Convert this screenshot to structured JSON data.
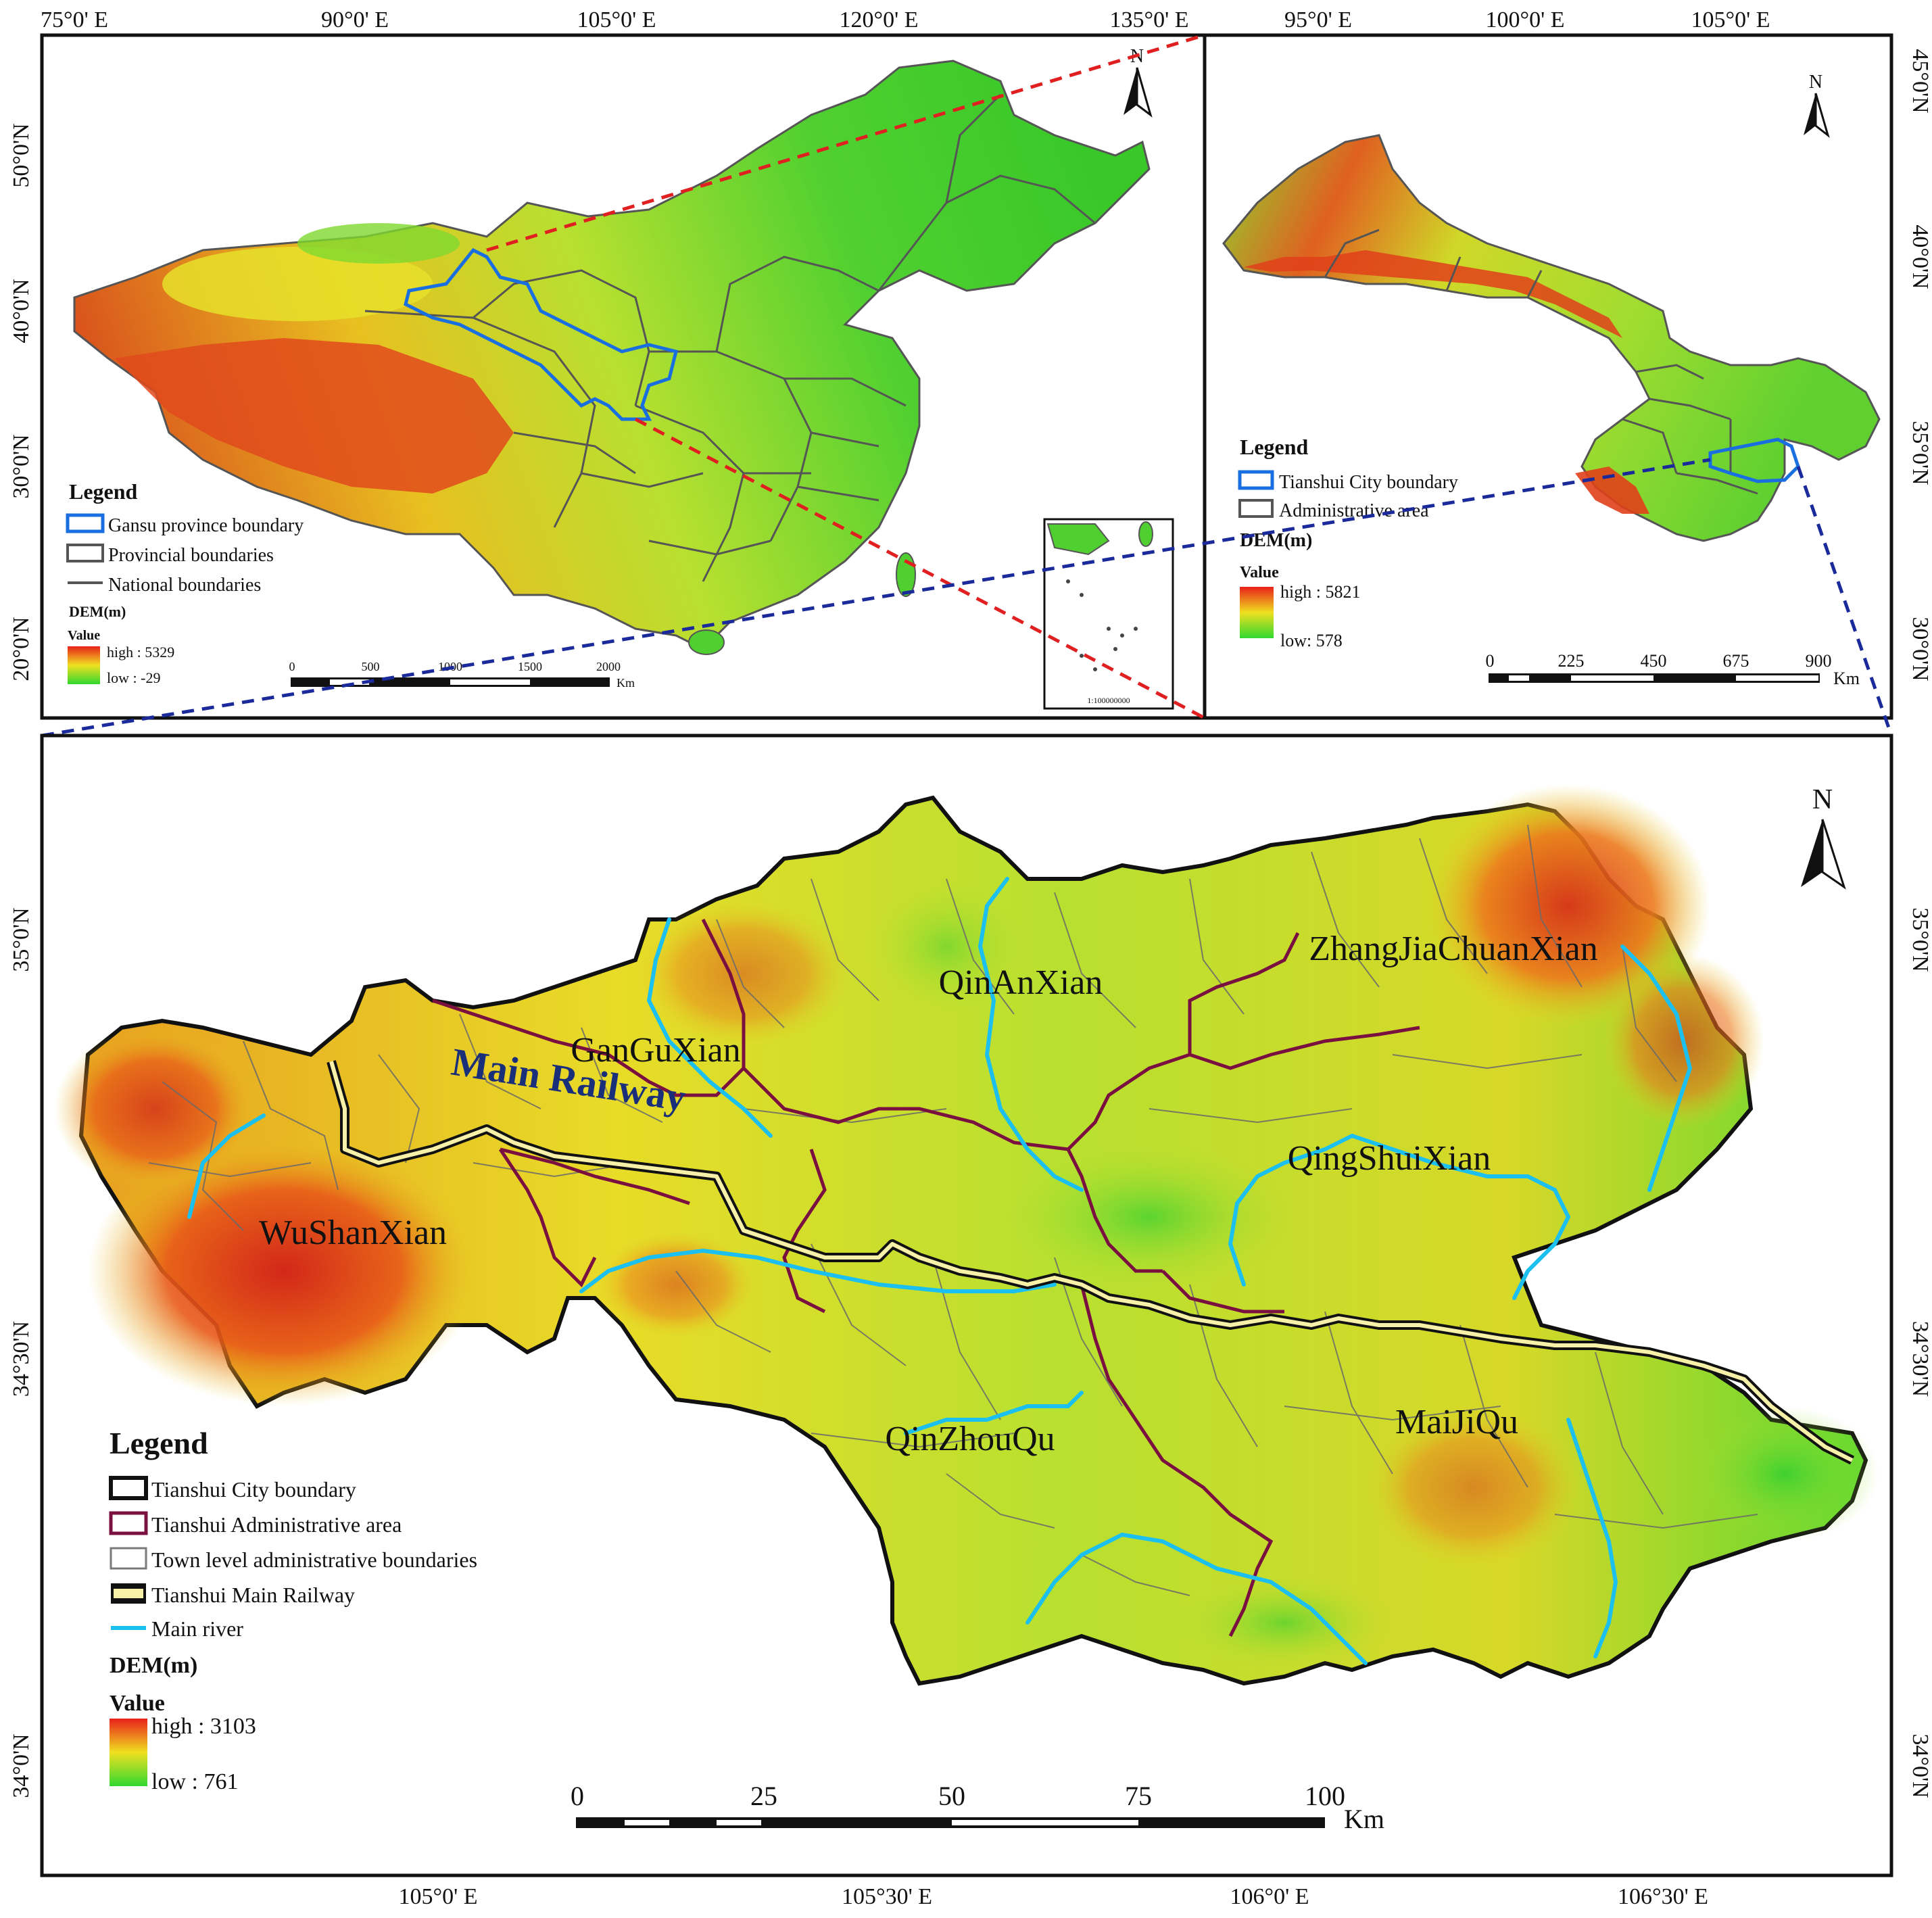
{
  "top_left": {
    "lon_labels": [
      "75°0' E",
      "90°0' E",
      "105°0' E",
      "120°0' E",
      "135°0' E"
    ],
    "lat_labels": [
      "50°0'N",
      "40°0'N",
      "30°0'N",
      "20°0'N"
    ],
    "north": "N",
    "legend": {
      "title": "Legend",
      "items": [
        "Gansu province boundary",
        "Provincial boundaries",
        "National boundaries"
      ],
      "dem_title": "DEM(m)",
      "value_label": "Value",
      "high": "high : 5329",
      "low": "low : -29"
    },
    "scale": {
      "ticks": [
        "0",
        "500",
        "1000",
        "1500",
        "2000"
      ],
      "unit": "Km"
    },
    "inset_scale": "1:100000000"
  },
  "top_right": {
    "lon_labels": [
      "95°0' E",
      "100°0' E",
      "105°0' E"
    ],
    "lat_labels": [
      "45°0'N",
      "40°0'N",
      "35°0'N",
      "30°0'N"
    ],
    "north": "N",
    "legend": {
      "title": "Legend",
      "items": [
        "Tianshui City boundary",
        "Administrative area"
      ],
      "dem_title": "DEM(m)",
      "value_label": "Value",
      "high": "high : 5821",
      "low": "low: 578"
    },
    "scale": {
      "ticks": [
        "0",
        "225",
        "450",
        "675",
        "900"
      ],
      "unit": "Km"
    }
  },
  "bottom": {
    "lon_labels": [
      "105°0' E",
      "105°30' E",
      "106°0' E",
      "106°30' E"
    ],
    "lat_labels": [
      "35°0'N",
      "34°30'N",
      "34°0'N"
    ],
    "north": "N",
    "districts": [
      "ZhangJiaChuanXian",
      "QinAnXian",
      "GanGuXian",
      "QingShuiXian",
      "WuShanXian",
      "QinZhouQu",
      "MaiJiQu"
    ],
    "railway_label": "Main Railway",
    "legend": {
      "title": "Legend",
      "items": [
        "Tianshui City boundary",
        "Tianshui Administrative area",
        "Town level administrative boundaries",
        "Tianshui Main Railway",
        "Main river"
      ],
      "dem_title": "DEM(m)",
      "value_label": "Value",
      "high": "high : 3103",
      "low": "low : 761"
    },
    "scale": {
      "ticks": [
        "0",
        "25",
        "50",
        "75",
        "100"
      ],
      "unit": "Km"
    }
  },
  "colors": {
    "dem_high": "#e8201a",
    "dem_mid": "#f0e020",
    "dem_low": "#30d830",
    "gansu_boundary": "#1a6fe0",
    "admin_area": "#7a1040",
    "river": "#1cc0f0",
    "connector_red": "#e02020",
    "connector_blue": "#1a2a9a"
  }
}
